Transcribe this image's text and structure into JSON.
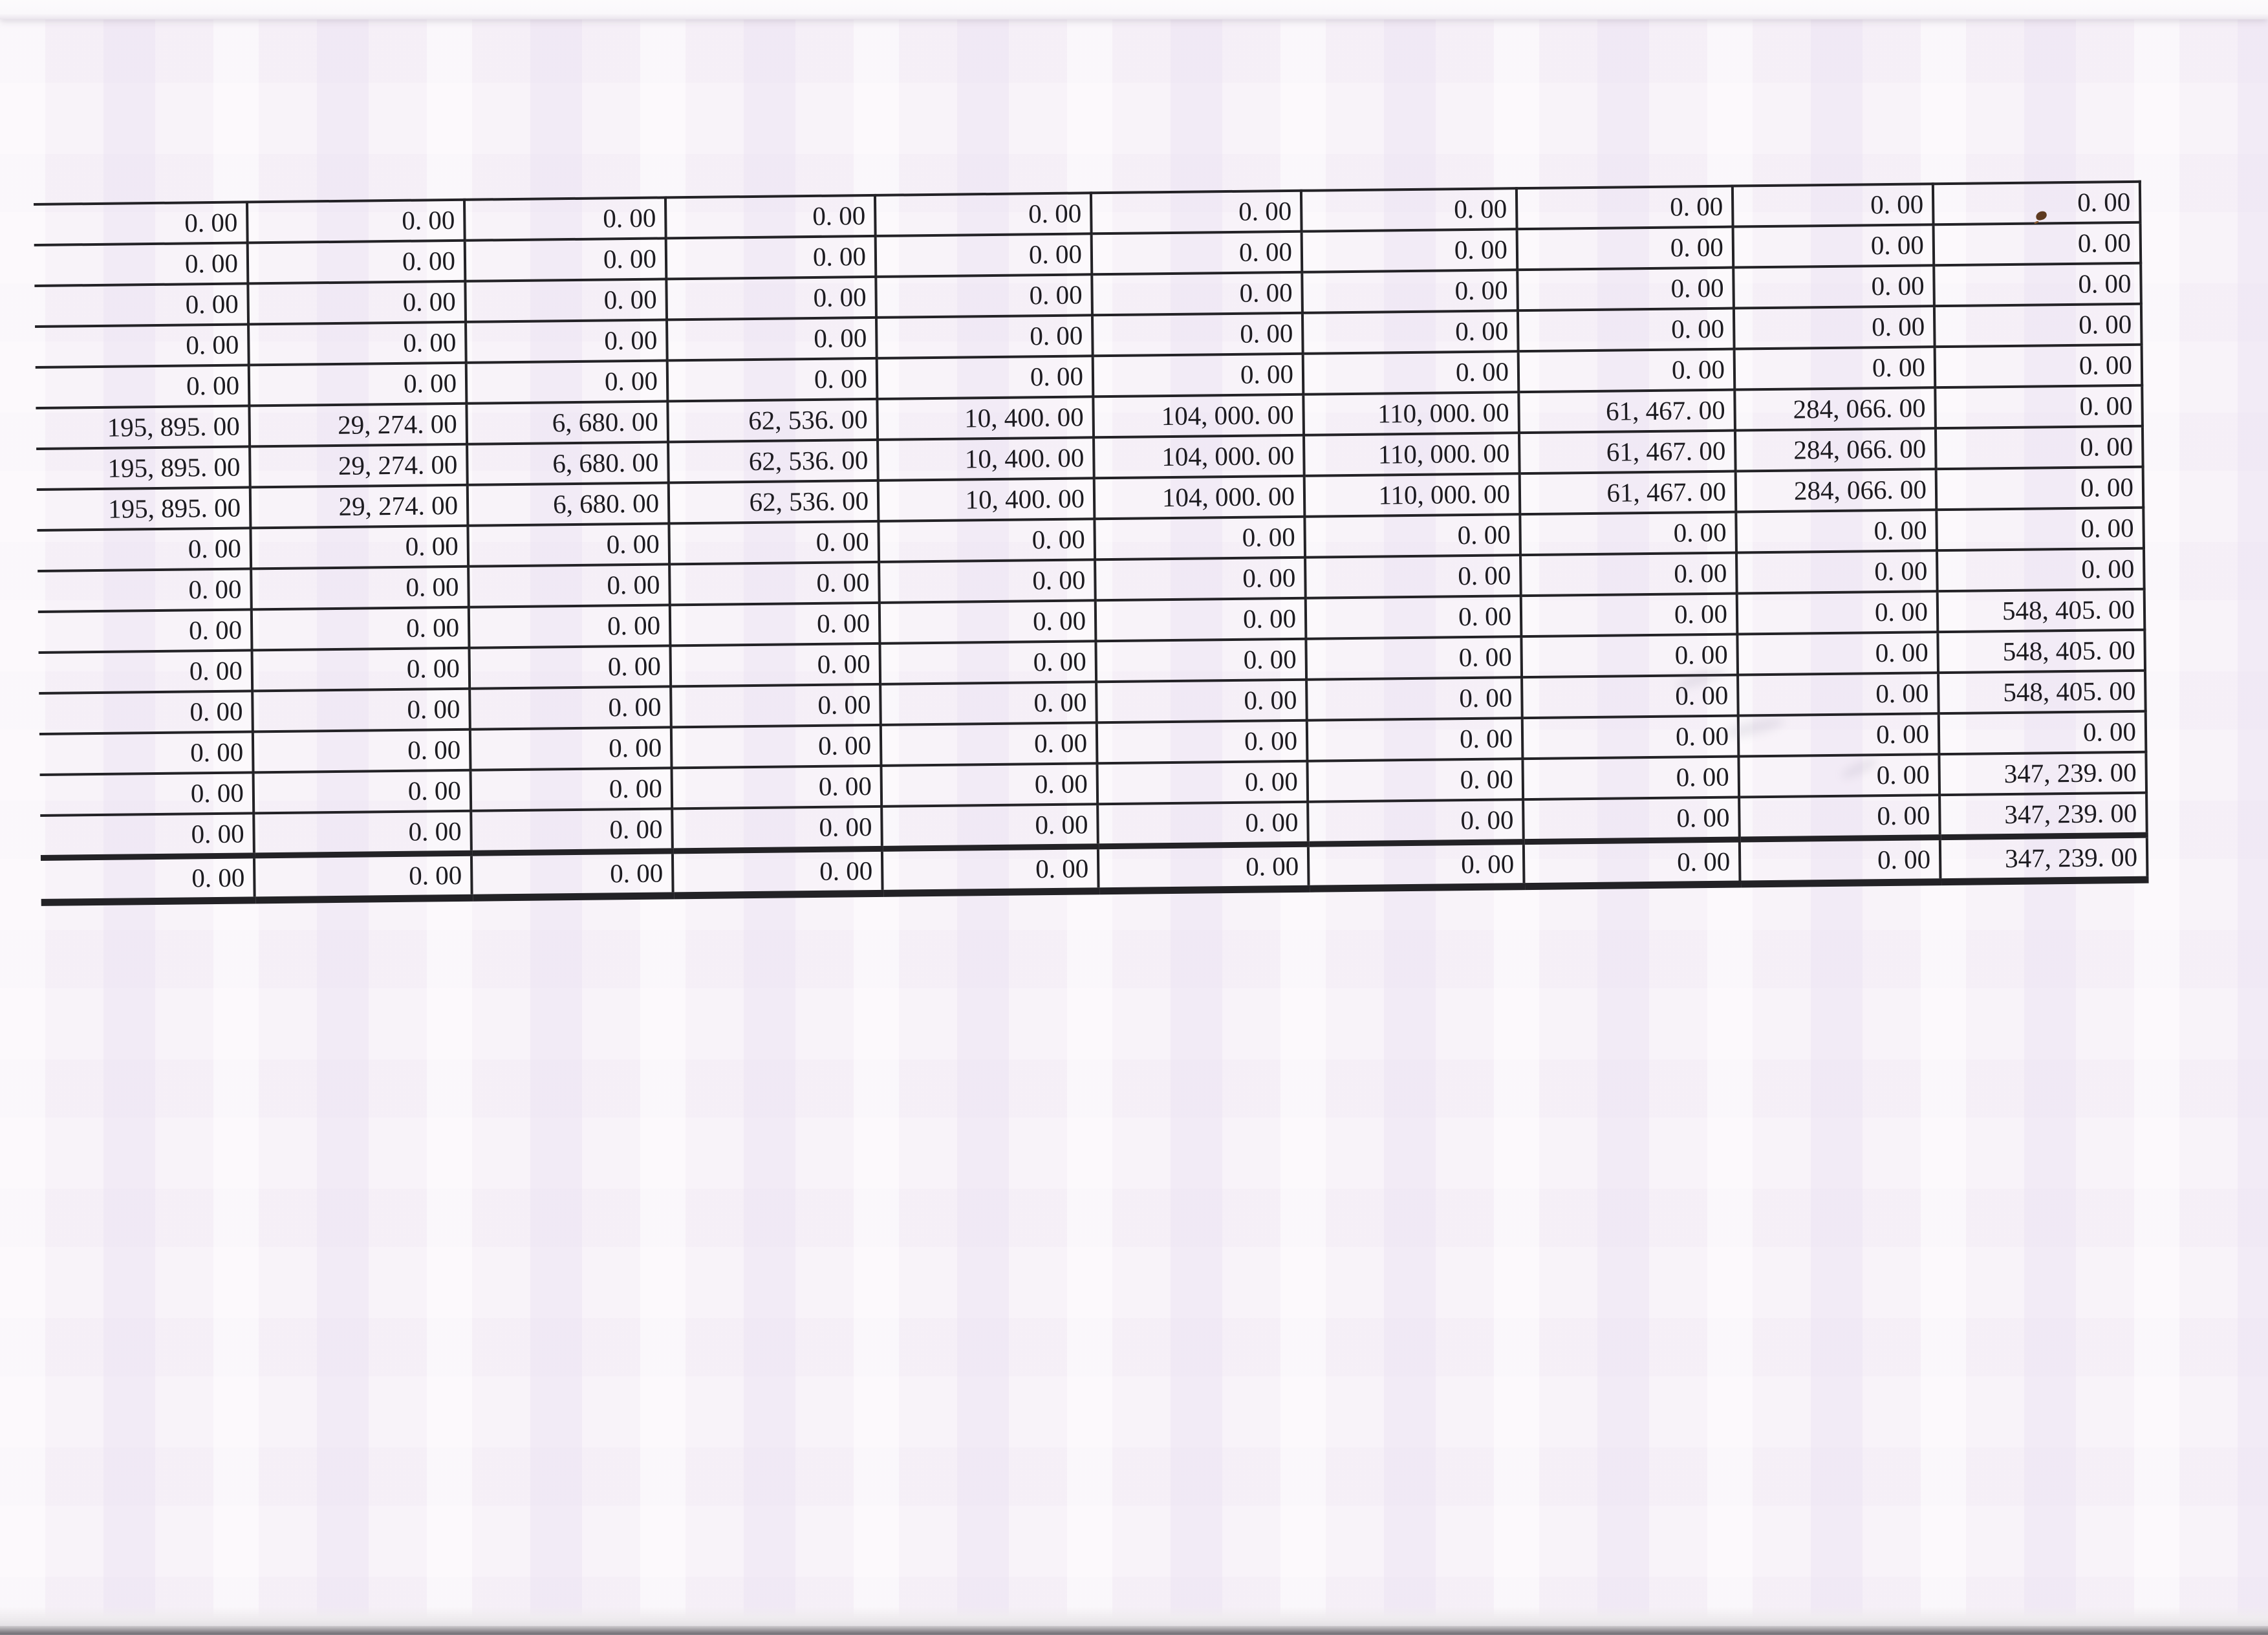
{
  "table": {
    "column_count": 10,
    "rows": [
      [
        "0. 00",
        "0. 00",
        "0. 00",
        "0. 00",
        "0. 00",
        "0. 00",
        "0. 00",
        "0. 00",
        "0. 00",
        "0. 00"
      ],
      [
        "0. 00",
        "0. 00",
        "0. 00",
        "0. 00",
        "0. 00",
        "0. 00",
        "0. 00",
        "0. 00",
        "0. 00",
        "0. 00"
      ],
      [
        "0. 00",
        "0. 00",
        "0. 00",
        "0. 00",
        "0. 00",
        "0. 00",
        "0. 00",
        "0. 00",
        "0. 00",
        "0. 00"
      ],
      [
        "0. 00",
        "0. 00",
        "0. 00",
        "0. 00",
        "0. 00",
        "0. 00",
        "0. 00",
        "0. 00",
        "0. 00",
        "0. 00"
      ],
      [
        "0. 00",
        "0. 00",
        "0. 00",
        "0. 00",
        "0. 00",
        "0. 00",
        "0. 00",
        "0. 00",
        "0. 00",
        "0. 00"
      ],
      [
        "195, 895. 00",
        "29, 274. 00",
        "6, 680. 00",
        "62, 536. 00",
        "10, 400. 00",
        "104, 000. 00",
        "110, 000. 00",
        "61, 467. 00",
        "284, 066. 00",
        "0. 00"
      ],
      [
        "195, 895. 00",
        "29, 274. 00",
        "6, 680. 00",
        "62, 536. 00",
        "10, 400. 00",
        "104, 000. 00",
        "110, 000. 00",
        "61, 467. 00",
        "284, 066. 00",
        "0. 00"
      ],
      [
        "195, 895. 00",
        "29, 274. 00",
        "6, 680. 00",
        "62, 536. 00",
        "10, 400. 00",
        "104, 000. 00",
        "110, 000. 00",
        "61, 467. 00",
        "284, 066. 00",
        "0. 00"
      ],
      [
        "0. 00",
        "0. 00",
        "0. 00",
        "0. 00",
        "0. 00",
        "0. 00",
        "0. 00",
        "0. 00",
        "0. 00",
        "0. 00"
      ],
      [
        "0. 00",
        "0. 00",
        "0. 00",
        "0. 00",
        "0. 00",
        "0. 00",
        "0. 00",
        "0. 00",
        "0. 00",
        "0. 00"
      ],
      [
        "0. 00",
        "0. 00",
        "0. 00",
        "0. 00",
        "0. 00",
        "0. 00",
        "0. 00",
        "0. 00",
        "0. 00",
        "548, 405. 00"
      ],
      [
        "0. 00",
        "0. 00",
        "0. 00",
        "0. 00",
        "0. 00",
        "0. 00",
        "0. 00",
        "0. 00",
        "0. 00",
        "548, 405. 00"
      ],
      [
        "0. 00",
        "0. 00",
        "0. 00",
        "0. 00",
        "0. 00",
        "0. 00",
        "0. 00",
        "0. 00",
        "0. 00",
        "548, 405. 00"
      ],
      [
        "0. 00",
        "0. 00",
        "0. 00",
        "0. 00",
        "0. 00",
        "0. 00",
        "0. 00",
        "0. 00",
        "0. 00",
        "0. 00"
      ],
      [
        "0. 00",
        "0. 00",
        "0. 00",
        "0. 00",
        "0. 00",
        "0. 00",
        "0. 00",
        "0. 00",
        "0. 00",
        "347, 239. 00"
      ],
      [
        "0. 00",
        "0. 00",
        "0. 00",
        "0. 00",
        "0. 00",
        "0. 00",
        "0. 00",
        "0. 00",
        "0. 00",
        "347, 239. 00"
      ],
      [
        "0. 00",
        "0. 00",
        "0. 00",
        "0. 00",
        "0. 00",
        "0. 00",
        "0. 00",
        "0. 00",
        "0. 00",
        "347, 239. 00"
      ]
    ],
    "total_row_index": 16
  },
  "colors": {
    "paper_tint": "#f6f0f7",
    "grid_line": "#232226",
    "digit_ink": "#1c1b20",
    "speck_brown": "#5e3a20"
  }
}
